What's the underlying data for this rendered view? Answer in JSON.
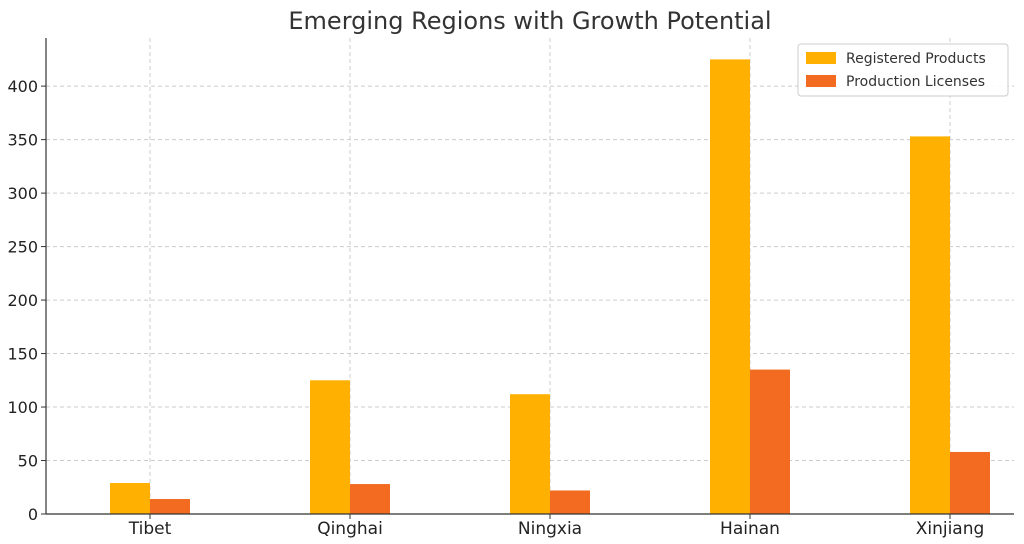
{
  "chart_data": {
    "type": "bar",
    "title": "Emerging Regions with Growth Potential",
    "xlabel": "",
    "ylabel": "",
    "categories": [
      "Tibet",
      "Qinghai",
      "Ningxia",
      "Hainan",
      "Xinjiang"
    ],
    "series": [
      {
        "name": "Registered Products",
        "values": [
          29,
          125,
          112,
          425,
          353
        ],
        "color": "#FFB000"
      },
      {
        "name": "Production Licenses",
        "values": [
          14,
          28,
          22,
          135,
          58
        ],
        "color": "#F26B21"
      }
    ],
    "ylim": [
      0,
      445
    ],
    "yticks": [
      0,
      50,
      100,
      150,
      200,
      250,
      300,
      350,
      400
    ],
    "grid": true,
    "legend": "top-right"
  }
}
